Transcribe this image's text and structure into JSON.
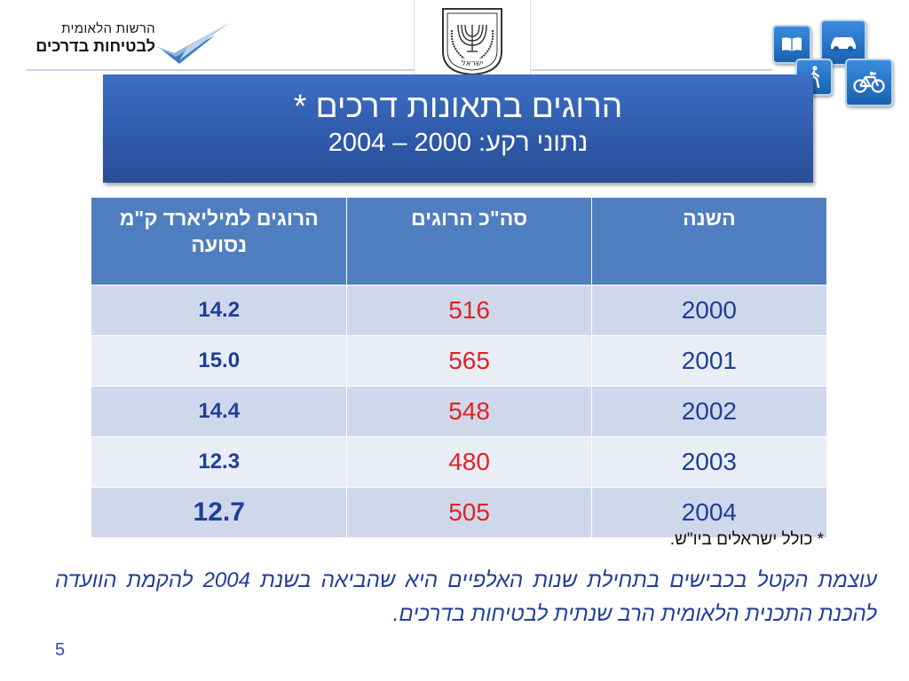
{
  "header": {
    "logo": {
      "line1": "הרשות הלאומית",
      "line2": "לבטיחות בדרכים"
    },
    "emblem": {
      "inscription": "ישראל"
    },
    "icons": [
      "book-icon",
      "car-icon",
      "pedestrian-icon",
      "bicycle-icon"
    ]
  },
  "banner": {
    "title": "הרוגים בתאונות  דרכים *",
    "subtitle": "נתוני רקע: 2000 – 2004"
  },
  "table": {
    "headers": [
      "השנה",
      "סה\"כ הרוגים",
      "הרוגים למיליארד ק\"מ נסועה"
    ],
    "rows": [
      {
        "year": "2000",
        "total": "516",
        "rate": "14.2"
      },
      {
        "year": "2001",
        "total": "565",
        "rate": "15.0"
      },
      {
        "year": "2002",
        "total": "548",
        "rate": "14.4"
      },
      {
        "year": "2003",
        "total": "480",
        "rate": "12.3"
      },
      {
        "year": "2004",
        "total": "505",
        "rate": "12.7"
      }
    ]
  },
  "footnote": "*  כולל ישראלים ביו\"ש.",
  "paragraph": "עוצמת הקטל בכבישים בתחילת שנות האלפיים היא שהביאה בשנת 2004 להקמת הוועדה להכנת התכנית הלאומית הרב שנתית לבטיחות בדרכים.",
  "page_number": "5",
  "colors": {
    "banner": "#2f5bab",
    "table_header": "#4f7fc0",
    "row_dark": "#cfd8eb",
    "row_light": "#e9edf6",
    "year_text": "#1f3f97",
    "total_text": "#e32222",
    "paragraph_text": "#1f3f97"
  }
}
